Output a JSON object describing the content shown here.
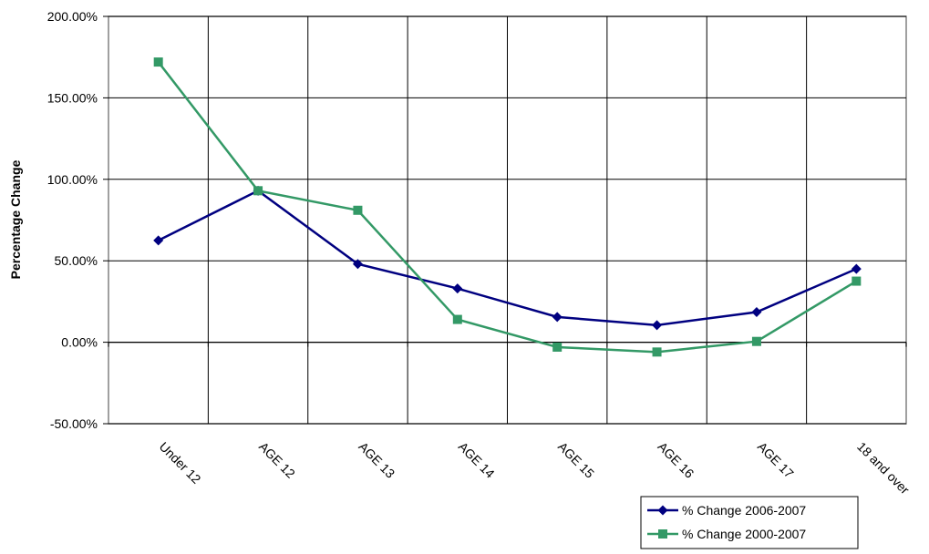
{
  "chart_data": {
    "type": "line",
    "title": "",
    "xlabel": "",
    "ylabel": "Percentage Change",
    "categories": [
      "Under 12",
      "AGE 12",
      "AGE 13",
      "AGE 14",
      "AGE 15",
      "AGE 16",
      "AGE 17",
      "18 and over"
    ],
    "y_ticks": [
      "200.00%",
      "150.00%",
      "100.00%",
      "50.00%",
      "0.00%",
      "-50.00%"
    ],
    "ylim": [
      -50,
      200
    ],
    "grid": true,
    "legend_position": "bottom-right",
    "series": [
      {
        "name": "% Change 2006-2007",
        "color": "#000080",
        "marker": "diamond",
        "values": [
          62.5,
          93,
          48,
          33,
          15.5,
          10.5,
          18.5,
          45
        ]
      },
      {
        "name": "% Change 2000-2007",
        "color": "#339966",
        "marker": "square",
        "values": [
          172,
          93,
          81,
          14,
          -3,
          -6,
          0.5,
          37.5
        ]
      }
    ]
  }
}
